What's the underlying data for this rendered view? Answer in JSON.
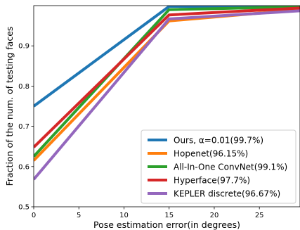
{
  "chart_data": {
    "type": "line",
    "title": "",
    "xlabel": "Pose estimation error(in degrees)",
    "ylabel": "Fraction of the num. of testing faces",
    "xlim": [
      0,
      29.5
    ],
    "ylim": [
      0.5,
      1.0
    ],
    "xticks": [
      0,
      5,
      10,
      15,
      20,
      25
    ],
    "yticks": [
      0.5,
      0.6,
      0.7,
      0.8,
      0.9
    ],
    "xtick_labels": [
      "0",
      "5",
      "10",
      "15",
      "20",
      "25"
    ],
    "ytick_labels": [
      "0.5",
      "0.6",
      "0.7",
      "0.8",
      "0.9"
    ],
    "grid": false,
    "legend_position": "bottom-right",
    "series": [
      {
        "name": "Ours, α=0.01(99.7%)",
        "color": "#1f77b4",
        "x": [
          0,
          15,
          29.5
        ],
        "y": [
          0.75,
          0.998,
          0.999
        ]
      },
      {
        "name": "Hopenet(96.15%)",
        "color": "#ff7f0e",
        "x": [
          0,
          15,
          29.5
        ],
        "y": [
          0.615,
          0.962,
          0.99
        ]
      },
      {
        "name": "All-In-One ConvNet(99.1%)",
        "color": "#2ca02c",
        "x": [
          0,
          15,
          29.5
        ],
        "y": [
          0.625,
          0.99,
          0.997
        ]
      },
      {
        "name": "Hyperface(97.7%)",
        "color": "#d62728",
        "x": [
          0,
          15,
          29.5
        ],
        "y": [
          0.648,
          0.977,
          0.994
        ]
      },
      {
        "name": "KEPLER discrete(96.67%)",
        "color": "#9467bd",
        "x": [
          0,
          15,
          29.5
        ],
        "y": [
          0.568,
          0.967,
          0.987
        ]
      }
    ]
  }
}
